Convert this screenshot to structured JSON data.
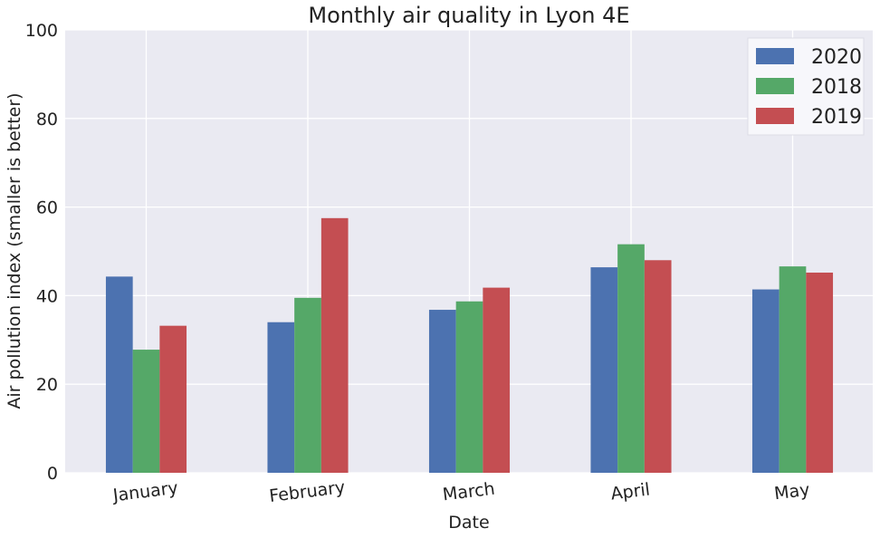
{
  "chart_data": {
    "type": "bar",
    "title": "Monthly air quality in Lyon 4E",
    "xlabel": "Date",
    "ylabel": "Air pollution index (smaller is better)",
    "ylim": [
      0,
      100
    ],
    "yticks": [
      0,
      20,
      40,
      60,
      80,
      100
    ],
    "grid": true,
    "legend_position": "top-right",
    "categories": [
      "January",
      "February",
      "March",
      "April",
      "May"
    ],
    "series": [
      {
        "name": "2020",
        "color": "#4c72b0",
        "values": [
          44.3,
          34.0,
          36.8,
          46.4,
          41.4
        ]
      },
      {
        "name": "2018",
        "color": "#55a868",
        "values": [
          27.8,
          39.5,
          38.7,
          51.6,
          46.6
        ]
      },
      {
        "name": "2019",
        "color": "#c44e52",
        "values": [
          33.2,
          57.5,
          41.8,
          48.0,
          45.2
        ]
      }
    ]
  }
}
